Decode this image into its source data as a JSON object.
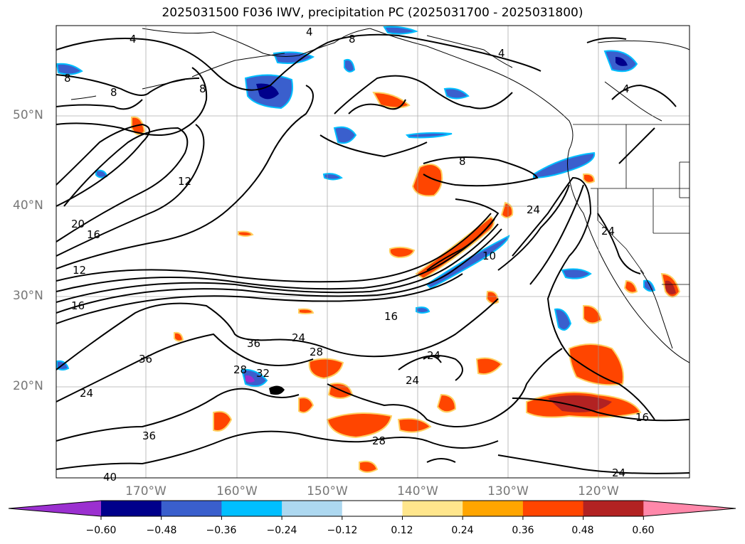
{
  "title": "2025031500 F036 IWV, precipitation PC (2025031700 - 2025031800)",
  "lat_labels": [
    "50°N",
    "40°N",
    "30°N",
    "20°N"
  ],
  "lon_labels": [
    "170°W",
    "160°W",
    "150°W",
    "140°W",
    "130°W",
    "120°W"
  ],
  "colorbar": {
    "ticks": [
      "−0.60",
      "−0.48",
      "−0.36",
      "−0.24",
      "−0.12",
      "0.12",
      "0.24",
      "0.36",
      "0.48",
      "0.60"
    ],
    "colors": [
      "#9b30d0",
      "#00008b",
      "#3a5fcd",
      "#00bfff",
      "#add8f0",
      "#ffffff",
      "#ffe68c",
      "#ffa500",
      "#ff4500",
      "#b22222",
      "#ff88aa"
    ]
  },
  "contour_labels": [
    "4",
    "8",
    "4",
    "8",
    "8",
    "8",
    "4",
    "4",
    "12",
    "20",
    "16",
    "12",
    "16",
    "8",
    "16",
    "24",
    "10",
    "24",
    "36",
    "24",
    "28",
    "36",
    "28",
    "32",
    "24",
    "24",
    "24",
    "28",
    "36",
    "16",
    "24",
    "40"
  ]
}
